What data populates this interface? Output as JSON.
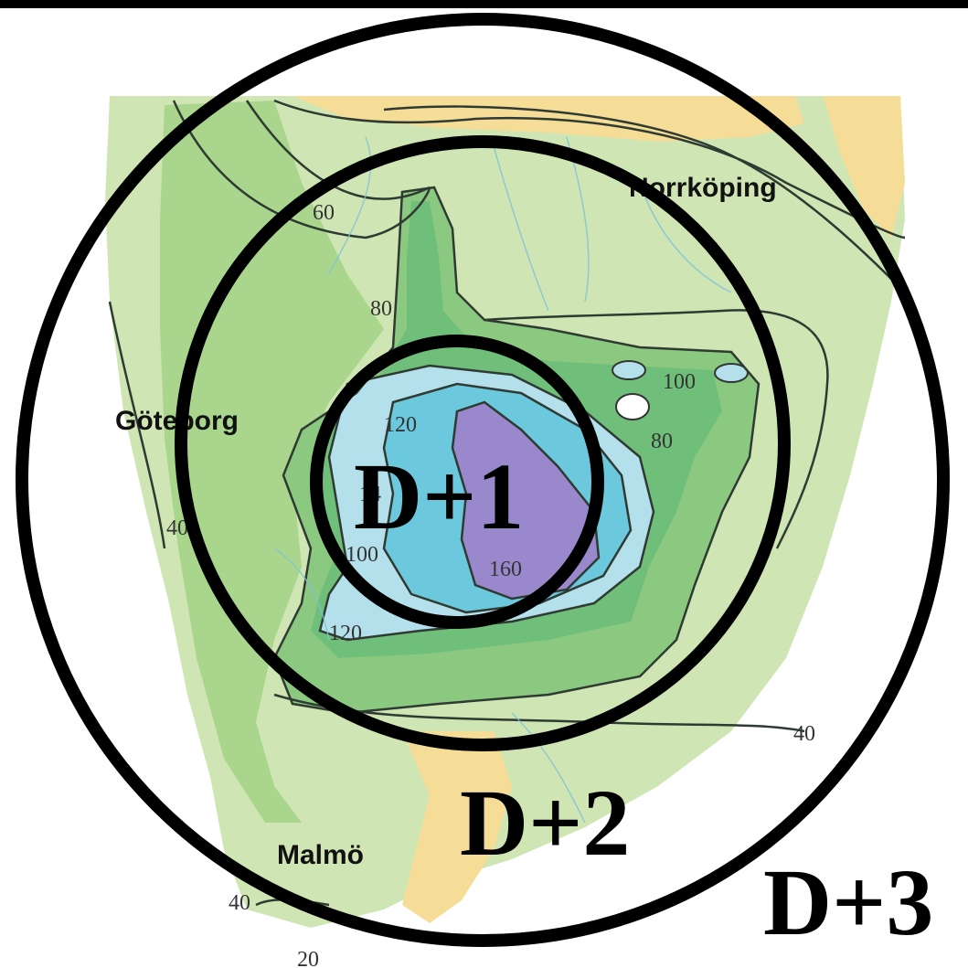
{
  "map": {
    "cities": {
      "norrkoping": "Norrköping",
      "goteborg": "Göteborg",
      "malmo": "Malmö"
    },
    "contour_labels": {
      "c60": "60",
      "c80_west": "80",
      "c100_east": "100",
      "c80_east": "80",
      "c120_top": "120",
      "c140": "14",
      "c100_west": "100",
      "c160": "160",
      "c120_bottom": "120",
      "c40_east": "40",
      "c40_west": "40",
      "c40_south": "40",
      "c20": "20"
    },
    "zones": {
      "d1": "D+1",
      "d2": "D+2",
      "d3": "D+3"
    },
    "colors": {
      "land_light": "#cfe6b4",
      "land_green": "#a9d68c",
      "green_mid": "#8cc980",
      "green_dark": "#6fbf7a",
      "light_blue": "#b3e0ea",
      "cyan": "#6cc8dc",
      "purple": "#9a88cc",
      "sand": "#f5dd97",
      "ring": "#000000"
    }
  }
}
